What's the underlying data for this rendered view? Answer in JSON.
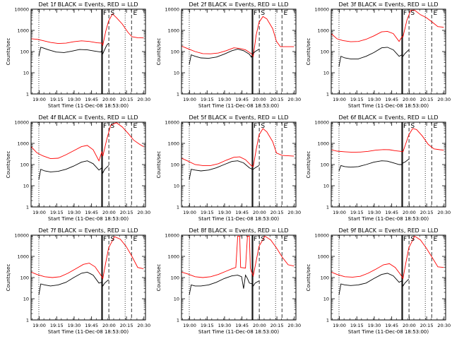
{
  "chart_data": {
    "type": "line",
    "panels": [
      {
        "title": "Det  1f BLACK = Events, RED = LLD",
        "black": "b1",
        "red": "r1"
      },
      {
        "title": "Det  2f BLACK = Events, RED = LLD",
        "black": "b2",
        "red": "r2"
      },
      {
        "title": "Det  3f BLACK = Events, RED = LLD",
        "black": "b3",
        "red": "r3"
      },
      {
        "title": "Det  4f BLACK = Events, RED = LLD",
        "black": "b4",
        "red": "r4"
      },
      {
        "title": "Det  5f BLACK = Events, RED = LLD",
        "black": "b5",
        "red": "r5"
      },
      {
        "title": "Det  6f BLACK = Events, RED = LLD",
        "black": "b6",
        "red": "r6"
      },
      {
        "title": "Det  7f BLACK = Events, RED = LLD",
        "black": "b7",
        "red": "r7"
      },
      {
        "title": "Det  8f BLACK = Events, RED = LLD",
        "black": "b8",
        "red": "r8"
      },
      {
        "title": "Det  9f BLACK = Events, RED = LLD",
        "black": "b9",
        "red": "r9"
      }
    ],
    "xlabel": "Start Time (11-Dec-08 18:53:00)",
    "ylabel": "Counts/sec",
    "xtick_labels": [
      "19:00",
      "19:15",
      "19:30",
      "19:45",
      "20:00",
      "20:15",
      "20:30"
    ],
    "xtick_minutes": [
      420,
      1320,
      2220,
      3120,
      4020,
      4920,
      5820
    ],
    "xlim_seconds": [
      0,
      5900
    ],
    "ytick_labels": [
      "1",
      "10",
      "100",
      "1000",
      "10000"
    ],
    "ylim": [
      1,
      10000
    ],
    "yscale": "log",
    "colors": {
      "black": "#000000",
      "red": "#ff0000"
    },
    "markers": {
      "dotted": [
        400,
        4850
      ],
      "solid": [
        3640,
        3680
      ],
      "dashed": [
        4010,
        5180
      ],
      "labels": {
        "S": 4020,
        "E": 5190,
        "F": 3640
      }
    },
    "series": {
      "b1": [
        [
          400,
          60
        ],
        [
          500,
          160
        ],
        [
          600,
          150
        ],
        [
          900,
          120
        ],
        [
          1300,
          95
        ],
        [
          1700,
          90
        ],
        [
          2100,
          105
        ],
        [
          2500,
          125
        ],
        [
          2900,
          120
        ],
        [
          3300,
          105
        ],
        [
          3600,
          95
        ],
        [
          3650,
          110
        ],
        [
          3700,
          80
        ],
        [
          3900,
          200
        ],
        [
          4000,
          250
        ]
      ],
      "r1": [
        [
          0,
          400
        ],
        [
          300,
          380
        ],
        [
          600,
          330
        ],
        [
          1000,
          270
        ],
        [
          1400,
          240
        ],
        [
          1800,
          250
        ],
        [
          2200,
          290
        ],
        [
          2600,
          320
        ],
        [
          3000,
          300
        ],
        [
          3400,
          260
        ],
        [
          3650,
          250
        ],
        [
          3700,
          200
        ],
        [
          3850,
          900
        ],
        [
          4000,
          2800
        ],
        [
          4200,
          6000
        ],
        [
          4400,
          4000
        ],
        [
          4700,
          2000
        ],
        [
          5000,
          800
        ],
        [
          5200,
          500
        ],
        [
          5500,
          450
        ],
        [
          5800,
          440
        ]
      ],
      "b2": [
        [
          400,
          25
        ],
        [
          500,
          70
        ],
        [
          700,
          60
        ],
        [
          1000,
          50
        ],
        [
          1400,
          48
        ],
        [
          1800,
          55
        ],
        [
          2200,
          75
        ],
        [
          2600,
          110
        ],
        [
          2900,
          130
        ],
        [
          3200,
          110
        ],
        [
          3500,
          75
        ],
        [
          3600,
          55
        ],
        [
          3680,
          80
        ],
        [
          3800,
          100
        ],
        [
          4000,
          130
        ]
      ],
      "r2": [
        [
          0,
          180
        ],
        [
          300,
          140
        ],
        [
          700,
          100
        ],
        [
          1100,
          80
        ],
        [
          1500,
          78
        ],
        [
          1900,
          85
        ],
        [
          2300,
          110
        ],
        [
          2700,
          150
        ],
        [
          3000,
          140
        ],
        [
          3300,
          120
        ],
        [
          3600,
          80
        ],
        [
          3700,
          60
        ],
        [
          3850,
          600
        ],
        [
          4000,
          2400
        ],
        [
          4200,
          4500
        ],
        [
          4400,
          3500
        ],
        [
          4700,
          1200
        ],
        [
          4900,
          300
        ],
        [
          5100,
          170
        ],
        [
          5500,
          170
        ],
        [
          5800,
          170
        ]
      ],
      "b3": [
        [
          400,
          20
        ],
        [
          500,
          60
        ],
        [
          700,
          50
        ],
        [
          1000,
          45
        ],
        [
          1400,
          45
        ],
        [
          1800,
          60
        ],
        [
          2200,
          90
        ],
        [
          2600,
          150
        ],
        [
          2900,
          160
        ],
        [
          3200,
          120
        ],
        [
          3500,
          60
        ],
        [
          3650,
          70
        ],
        [
          3700,
          60
        ],
        [
          3800,
          80
        ],
        [
          4000,
          120
        ]
      ],
      "r3": [
        [
          0,
          700
        ],
        [
          300,
          400
        ],
        [
          600,
          330
        ],
        [
          1000,
          290
        ],
        [
          1400,
          300
        ],
        [
          1800,
          380
        ],
        [
          2200,
          550
        ],
        [
          2600,
          850
        ],
        [
          2900,
          900
        ],
        [
          3200,
          700
        ],
        [
          3500,
          300
        ],
        [
          3650,
          500
        ],
        [
          3700,
          500
        ],
        [
          3900,
          3000
        ],
        [
          4100,
          9000
        ],
        [
          4300,
          9000
        ],
        [
          4600,
          5500
        ],
        [
          4900,
          4000
        ],
        [
          5200,
          2500
        ],
        [
          5500,
          1500
        ],
        [
          5800,
          1400
        ]
      ],
      "b4": [
        [
          400,
          20
        ],
        [
          500,
          60
        ],
        [
          700,
          50
        ],
        [
          1000,
          45
        ],
        [
          1400,
          48
        ],
        [
          1800,
          60
        ],
        [
          2200,
          85
        ],
        [
          2600,
          130
        ],
        [
          2900,
          150
        ],
        [
          3200,
          110
        ],
        [
          3500,
          55
        ],
        [
          3650,
          70
        ],
        [
          3700,
          40
        ],
        [
          3800,
          60
        ],
        [
          4000,
          90
        ]
      ],
      "r4": [
        [
          0,
          700
        ],
        [
          300,
          360
        ],
        [
          600,
          260
        ],
        [
          1000,
          190
        ],
        [
          1400,
          200
        ],
        [
          1800,
          290
        ],
        [
          2200,
          450
        ],
        [
          2600,
          700
        ],
        [
          2900,
          800
        ],
        [
          3200,
          500
        ],
        [
          3500,
          150
        ],
        [
          3650,
          400
        ],
        [
          3700,
          250
        ],
        [
          3900,
          1500
        ],
        [
          4100,
          7000
        ],
        [
          4400,
          9500
        ],
        [
          4700,
          6000
        ],
        [
          5000,
          3000
        ],
        [
          5300,
          1400
        ],
        [
          5600,
          900
        ],
        [
          5800,
          700
        ]
      ],
      "b5": [
        [
          400,
          20
        ],
        [
          500,
          60
        ],
        [
          700,
          55
        ],
        [
          1000,
          50
        ],
        [
          1400,
          55
        ],
        [
          1800,
          70
        ],
        [
          2200,
          100
        ],
        [
          2600,
          140
        ],
        [
          2900,
          150
        ],
        [
          3200,
          120
        ],
        [
          3500,
          70
        ],
        [
          3650,
          60
        ],
        [
          3700,
          60
        ],
        [
          3800,
          70
        ],
        [
          4000,
          90
        ]
      ],
      "r5": [
        [
          0,
          200
        ],
        [
          300,
          150
        ],
        [
          700,
          100
        ],
        [
          1100,
          90
        ],
        [
          1500,
          90
        ],
        [
          1900,
          110
        ],
        [
          2300,
          160
        ],
        [
          2700,
          220
        ],
        [
          3000,
          230
        ],
        [
          3300,
          170
        ],
        [
          3600,
          90
        ],
        [
          3700,
          80
        ],
        [
          3850,
          500
        ],
        [
          4000,
          2500
        ],
        [
          4200,
          5000
        ],
        [
          4400,
          3500
        ],
        [
          4700,
          1200
        ],
        [
          4900,
          350
        ],
        [
          5200,
          270
        ],
        [
          5500,
          260
        ],
        [
          5800,
          250
        ]
      ],
      "b6": [
        [
          400,
          50
        ],
        [
          500,
          90
        ],
        [
          700,
          80
        ],
        [
          1000,
          75
        ],
        [
          1400,
          80
        ],
        [
          1800,
          100
        ],
        [
          2200,
          130
        ],
        [
          2600,
          150
        ],
        [
          2900,
          145
        ],
        [
          3200,
          120
        ],
        [
          3500,
          100
        ],
        [
          3650,
          100
        ],
        [
          3700,
          120
        ],
        [
          3800,
          130
        ],
        [
          4000,
          180
        ]
      ],
      "r6": [
        [
          0,
          500
        ],
        [
          300,
          430
        ],
        [
          700,
          400
        ],
        [
          1100,
          380
        ],
        [
          1500,
          390
        ],
        [
          1900,
          420
        ],
        [
          2300,
          480
        ],
        [
          2700,
          510
        ],
        [
          3000,
          500
        ],
        [
          3300,
          450
        ],
        [
          3600,
          420
        ],
        [
          3700,
          400
        ],
        [
          3850,
          1000
        ],
        [
          4000,
          2500
        ],
        [
          4200,
          5000
        ],
        [
          4400,
          4500
        ],
        [
          4700,
          2200
        ],
        [
          5000,
          900
        ],
        [
          5300,
          550
        ],
        [
          5600,
          500
        ],
        [
          5800,
          480
        ]
      ],
      "b7": [
        [
          400,
          15
        ],
        [
          500,
          50
        ],
        [
          700,
          45
        ],
        [
          1000,
          40
        ],
        [
          1400,
          45
        ],
        [
          1800,
          60
        ],
        [
          2200,
          100
        ],
        [
          2600,
          160
        ],
        [
          2900,
          180
        ],
        [
          3200,
          130
        ],
        [
          3500,
          55
        ],
        [
          3650,
          60
        ],
        [
          3700,
          40
        ],
        [
          3800,
          55
        ],
        [
          4000,
          80
        ]
      ],
      "r7": [
        [
          0,
          180
        ],
        [
          300,
          140
        ],
        [
          700,
          110
        ],
        [
          1100,
          100
        ],
        [
          1500,
          110
        ],
        [
          1900,
          160
        ],
        [
          2300,
          260
        ],
        [
          2700,
          420
        ],
        [
          3000,
          480
        ],
        [
          3300,
          320
        ],
        [
          3600,
          130
        ],
        [
          3700,
          90
        ],
        [
          3850,
          500
        ],
        [
          4000,
          2500
        ],
        [
          4300,
          8500
        ],
        [
          4600,
          6500
        ],
        [
          4900,
          3000
        ],
        [
          5200,
          1000
        ],
        [
          5500,
          300
        ],
        [
          5800,
          260
        ]
      ],
      "b8": [
        [
          400,
          15
        ],
        [
          500,
          45
        ],
        [
          700,
          40
        ],
        [
          1000,
          40
        ],
        [
          1400,
          45
        ],
        [
          1800,
          60
        ],
        [
          2200,
          90
        ],
        [
          2600,
          120
        ],
        [
          2900,
          130
        ],
        [
          3100,
          110
        ],
        [
          3200,
          30
        ],
        [
          3300,
          130
        ],
        [
          3400,
          90
        ],
        [
          3500,
          55
        ],
        [
          3650,
          50
        ],
        [
          3700,
          40
        ],
        [
          3800,
          55
        ],
        [
          4000,
          70
        ]
      ],
      "r8": [
        [
          0,
          180
        ],
        [
          300,
          150
        ],
        [
          700,
          110
        ],
        [
          1100,
          100
        ],
        [
          1500,
          110
        ],
        [
          1900,
          140
        ],
        [
          2300,
          200
        ],
        [
          2600,
          260
        ],
        [
          2800,
          300
        ],
        [
          2900,
          9000
        ],
        [
          3000,
          9000
        ],
        [
          3050,
          300
        ],
        [
          3300,
          280
        ],
        [
          3400,
          9000
        ],
        [
          3500,
          9000
        ],
        [
          3550,
          280
        ],
        [
          3600,
          200
        ],
        [
          3700,
          120
        ],
        [
          3850,
          600
        ],
        [
          4000,
          3000
        ],
        [
          4300,
          9000
        ],
        [
          4600,
          6000
        ],
        [
          4900,
          2500
        ],
        [
          5200,
          900
        ],
        [
          5500,
          400
        ],
        [
          5800,
          350
        ]
      ],
      "b9": [
        [
          400,
          15
        ],
        [
          500,
          50
        ],
        [
          700,
          45
        ],
        [
          1000,
          42
        ],
        [
          1400,
          45
        ],
        [
          1800,
          55
        ],
        [
          2200,
          90
        ],
        [
          2600,
          140
        ],
        [
          2900,
          160
        ],
        [
          3200,
          120
        ],
        [
          3500,
          60
        ],
        [
          3650,
          70
        ],
        [
          3700,
          40
        ],
        [
          3800,
          55
        ],
        [
          4000,
          85
        ]
      ],
      "r9": [
        [
          0,
          180
        ],
        [
          300,
          140
        ],
        [
          700,
          110
        ],
        [
          1100,
          105
        ],
        [
          1500,
          115
        ],
        [
          1900,
          160
        ],
        [
          2300,
          250
        ],
        [
          2700,
          400
        ],
        [
          3000,
          450
        ],
        [
          3300,
          300
        ],
        [
          3600,
          130
        ],
        [
          3700,
          90
        ],
        [
          3850,
          500
        ],
        [
          4000,
          2500
        ],
        [
          4300,
          9000
        ],
        [
          4600,
          6000
        ],
        [
          4900,
          2500
        ],
        [
          5200,
          900
        ],
        [
          5500,
          320
        ],
        [
          5800,
          300
        ]
      ]
    }
  }
}
